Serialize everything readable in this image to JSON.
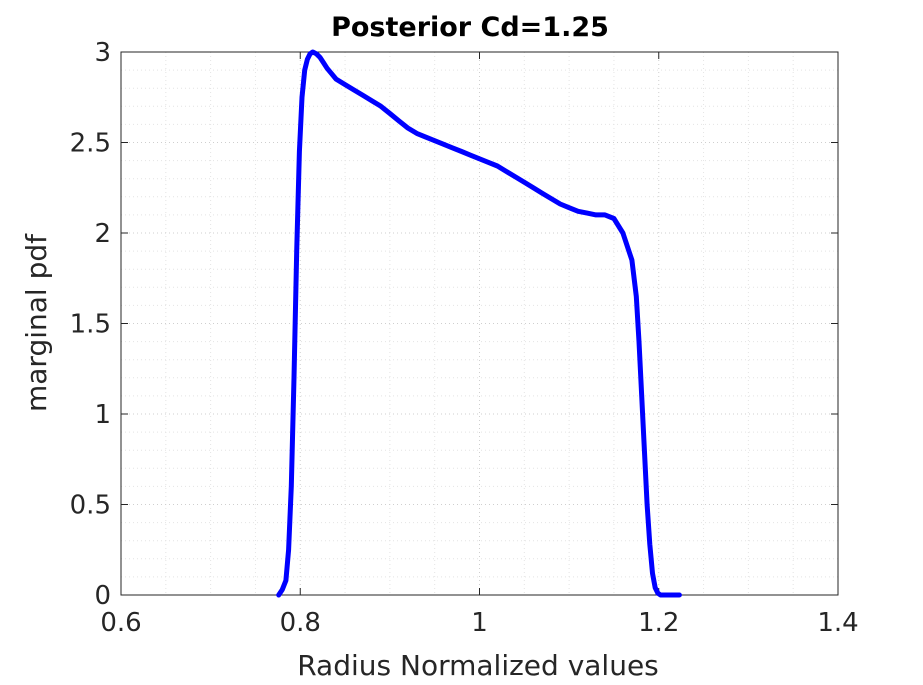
{
  "chart_data": {
    "type": "line",
    "title": "Posterior Cd=1.25",
    "xlabel": "Radius Normalized values",
    "ylabel": "marginal pdf",
    "xlim": [
      0.6,
      1.4
    ],
    "ylim": [
      0,
      3
    ],
    "xticks": [
      0.6,
      0.8,
      1.0,
      1.2,
      1.4
    ],
    "xtick_labels": [
      "0.6",
      "0.8",
      "1",
      "1.2",
      "1.4"
    ],
    "yticks": [
      0,
      0.5,
      1,
      1.5,
      2,
      2.5,
      3
    ],
    "ytick_labels": [
      "0",
      "0.5",
      "1",
      "1.5",
      "2",
      "2.5",
      "3"
    ],
    "grid": true,
    "minor_grid": true,
    "series": [
      {
        "color": "#0000ff",
        "x": [
          0.776,
          0.78,
          0.784,
          0.787,
          0.79,
          0.793,
          0.796,
          0.799,
          0.802,
          0.805,
          0.808,
          0.811,
          0.814,
          0.818,
          0.822,
          0.826,
          0.83,
          0.835,
          0.84,
          0.85,
          0.86,
          0.87,
          0.88,
          0.89,
          0.9,
          0.91,
          0.92,
          0.93,
          0.94,
          0.95,
          0.96,
          0.97,
          0.98,
          0.99,
          1.0,
          1.01,
          1.02,
          1.03,
          1.04,
          1.05,
          1.06,
          1.07,
          1.08,
          1.09,
          1.1,
          1.11,
          1.12,
          1.13,
          1.14,
          1.15,
          1.16,
          1.17,
          1.175,
          1.178,
          1.181,
          1.184,
          1.187,
          1.19,
          1.193,
          1.196,
          1.199,
          1.202,
          1.205,
          1.208,
          1.211,
          1.214,
          1.217,
          1.22,
          1.223
        ],
        "y": [
          0.0,
          0.03,
          0.08,
          0.25,
          0.6,
          1.2,
          1.9,
          2.45,
          2.75,
          2.9,
          2.96,
          2.99,
          3.0,
          2.99,
          2.97,
          2.94,
          2.91,
          2.88,
          2.85,
          2.82,
          2.79,
          2.76,
          2.73,
          2.7,
          2.66,
          2.62,
          2.58,
          2.55,
          2.53,
          2.51,
          2.49,
          2.47,
          2.45,
          2.43,
          2.41,
          2.39,
          2.37,
          2.34,
          2.31,
          2.28,
          2.25,
          2.22,
          2.19,
          2.16,
          2.14,
          2.12,
          2.11,
          2.1,
          2.1,
          2.08,
          2.0,
          1.85,
          1.65,
          1.4,
          1.1,
          0.8,
          0.5,
          0.28,
          0.12,
          0.04,
          0.01,
          0.0,
          0.0,
          0.0,
          0.0,
          0.0,
          0.0,
          0.0,
          0.0
        ]
      }
    ]
  }
}
